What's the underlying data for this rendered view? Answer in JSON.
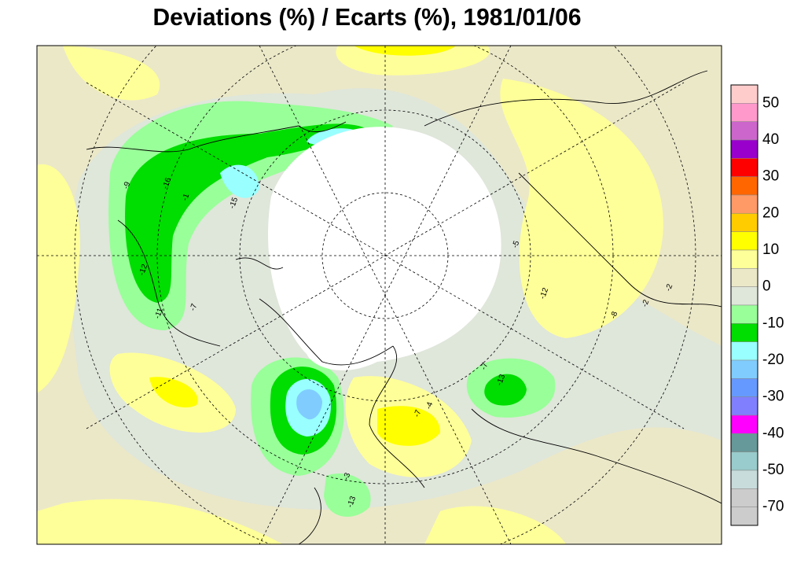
{
  "title": "Deviations (%) / Ecarts (%), 1981/01/06",
  "legend": {
    "colors": [
      "#ffcccc",
      "#ff99cc",
      "#cc66cc",
      "#9900cc",
      "#ff0000",
      "#ff6600",
      "#ff9966",
      "#ffcc00",
      "#ffff00",
      "#ffff99",
      "#ebe8c8",
      "#dfe6da",
      "#99ff99",
      "#00dd00",
      "#99ffff",
      "#80ccff",
      "#6699ff",
      "#8080ff",
      "#ff00ff",
      "#669999",
      "#99cccc",
      "#c8dcdc",
      "#cccccc",
      "#cccccc"
    ],
    "labels": [
      50,
      40,
      30,
      20,
      10,
      0,
      -10,
      -20,
      -30,
      -40,
      -50,
      -70
    ]
  },
  "contour_labels": [
    "-16",
    "-15",
    "-9",
    "-12",
    "-11",
    "-7",
    "-3",
    "-13",
    "-7",
    "-13",
    "-4",
    "-7",
    "-5",
    "-12",
    "-8",
    "-2",
    "-2",
    "-1"
  ]
}
